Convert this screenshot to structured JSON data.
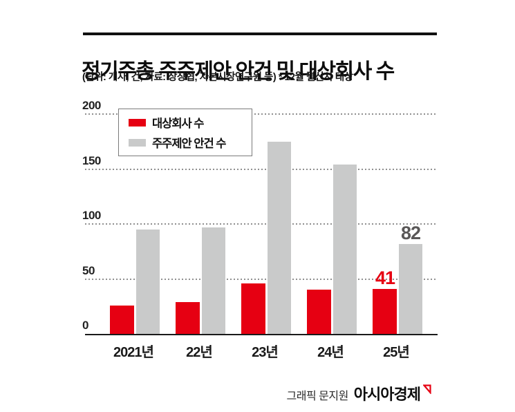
{
  "header": {
    "title": "정기주총 주주제안 안건 및 대상회사 수",
    "subtitle": "(단위: 개사, 건, 자료: 상장협, 자본시장연구원 등)  * 12월 결산사 대상"
  },
  "footer": {
    "credit": "그래픽 문지원",
    "brand": "아시아경제",
    "logo_icon": "asia-economy-mark",
    "logo_color": "#e60012"
  },
  "colors": {
    "accent_red": "#e60012",
    "bar_gray": "#c9caca",
    "annotation_gray": "#595757",
    "axis": "#1a1a1a",
    "gridline": "#8f8f8f"
  },
  "chart_data": {
    "type": "bar",
    "title": "정기주총 주주제안 안건 및 대상회사 수",
    "categories": [
      "2021년",
      "22년",
      "23년",
      "24년",
      "25년"
    ],
    "series": [
      {
        "name": "대상회사 수",
        "color": "#e60012",
        "values": [
          26,
          29,
          46,
          40,
          41
        ]
      },
      {
        "name": "주주제안 안건 수",
        "color": "#c9caca",
        "values": [
          95,
          97,
          175,
          154,
          82
        ]
      }
    ],
    "xlabel": "",
    "ylabel": "",
    "ylim": [
      0,
      200
    ],
    "yticks": [
      0,
      50,
      100,
      150,
      200
    ],
    "grid": "horizontal-dotted",
    "legend_position": "top-left-inside",
    "annotations": [
      {
        "category": "25년",
        "series": "대상회사 수",
        "text": "41",
        "color": "#e60012"
      },
      {
        "category": "25년",
        "series": "주주제안 안건 수",
        "text": "82",
        "color": "#595757"
      }
    ]
  }
}
